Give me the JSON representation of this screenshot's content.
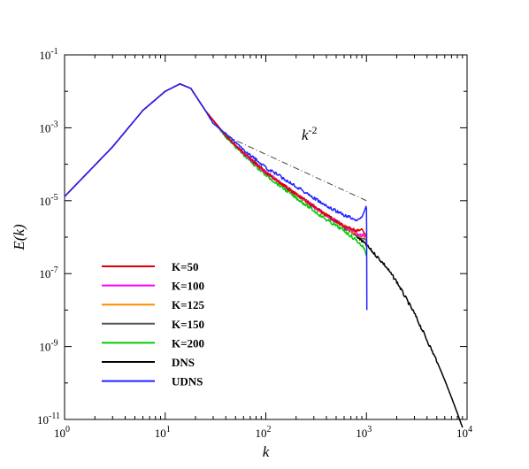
{
  "chart_data": {
    "type": "line",
    "xlabel": "k",
    "ylabel": "E(k)",
    "x_scale": "log",
    "y_scale": "log",
    "xlim": [
      1,
      10000
    ],
    "ylim": [
      1e-11,
      0.1
    ],
    "x_ticks": [
      {
        "value": 1,
        "base": "10",
        "exp": "0"
      },
      {
        "value": 10,
        "base": "10",
        "exp": "1"
      },
      {
        "value": 100,
        "base": "10",
        "exp": "2"
      },
      {
        "value": 1000,
        "base": "10",
        "exp": "3"
      },
      {
        "value": 10000,
        "base": "10",
        "exp": "4"
      }
    ],
    "y_ticks": [
      {
        "value": 1e-11,
        "base": "10",
        "exp": "-11"
      },
      {
        "value": 1e-09,
        "base": "10",
        "exp": "-9"
      },
      {
        "value": 1e-07,
        "base": "10",
        "exp": "-7"
      },
      {
        "value": 1e-05,
        "base": "10",
        "exp": "-5"
      },
      {
        "value": 0.001,
        "base": "10",
        "exp": "-3"
      },
      {
        "value": 0.1,
        "base": "10",
        "exp": "-1"
      }
    ],
    "grid": false,
    "legend_position": "bottom-left",
    "annotation": {
      "base": "k",
      "exp": "-2",
      "line": [
        [
          40,
          0.0006
        ],
        [
          1000,
          1e-05
        ]
      ]
    },
    "series": [
      {
        "name": "K=50",
        "color": "#dd0000",
        "x": [
          1,
          3,
          6,
          10,
          14,
          18,
          25,
          40,
          60,
          100,
          200,
          400,
          600,
          800,
          900,
          950,
          1000
        ],
        "y": [
          1.3e-05,
          0.0003,
          0.003,
          0.01,
          0.016,
          0.012,
          0.003,
          0.0006,
          0.0002,
          6e-05,
          1.5e-05,
          4e-06,
          2e-06,
          1.5e-06,
          1.7e-06,
          1.3e-06,
          1.1e-06
        ]
      },
      {
        "name": "K=100",
        "color": "#ff00ff",
        "x": [
          1,
          3,
          6,
          10,
          14,
          18,
          25,
          40,
          60,
          100,
          200,
          400,
          600,
          800,
          950,
          1000
        ],
        "y": [
          1.3e-05,
          0.0003,
          0.003,
          0.01,
          0.016,
          0.012,
          0.003,
          0.0006,
          0.0002,
          6e-05,
          1.5e-05,
          4e-06,
          2e-06,
          1.3e-06,
          1.1e-06,
          1e-06
        ]
      },
      {
        "name": "K=125",
        "color": "#ff8c00",
        "x": [
          1,
          3,
          6,
          10,
          14,
          18,
          25,
          40,
          60,
          100,
          200,
          400,
          600,
          800,
          950,
          1000
        ],
        "y": [
          1.3e-05,
          0.0003,
          0.003,
          0.01,
          0.016,
          0.012,
          0.003,
          0.0006,
          0.0002,
          6e-05,
          1.5e-05,
          4e-06,
          2e-06,
          1.2e-06,
          1e-06,
          9e-07
        ]
      },
      {
        "name": "K=150",
        "color": "#555555",
        "x": [
          1,
          3,
          6,
          10,
          14,
          18,
          25,
          40,
          60,
          100,
          200,
          400,
          600,
          800,
          950,
          1000
        ],
        "y": [
          1.3e-05,
          0.0003,
          0.003,
          0.01,
          0.016,
          0.012,
          0.003,
          0.0006,
          0.0002,
          6e-05,
          1.5e-05,
          4e-06,
          1.8e-06,
          1.1e-06,
          9e-07,
          8e-07
        ]
      },
      {
        "name": "K=200",
        "color": "#00cc00",
        "x": [
          1,
          3,
          6,
          10,
          14,
          18,
          25,
          40,
          60,
          100,
          200,
          400,
          600,
          800,
          950,
          1000
        ],
        "y": [
          1.3e-05,
          0.0003,
          0.003,
          0.01,
          0.016,
          0.012,
          0.003,
          0.00055,
          0.00018,
          5e-05,
          1.2e-05,
          3e-06,
          1.5e-06,
          8e-07,
          5e-07,
          3e-07
        ]
      },
      {
        "name": "DNS",
        "color": "#000000",
        "x": [
          1,
          3,
          6,
          10,
          14,
          18,
          25,
          40,
          60,
          100,
          200,
          400,
          700,
          1000,
          1500,
          2000,
          3000,
          4000,
          5000,
          6000,
          7000,
          8000,
          9000
        ],
        "y": [
          1.3e-05,
          0.0003,
          0.003,
          0.01,
          0.016,
          0.012,
          0.003,
          0.0006,
          0.0002,
          6e-05,
          1.5e-05,
          4e-06,
          1.5e-06,
          6e-07,
          1.8e-07,
          6e-08,
          8e-09,
          1.5e-09,
          4e-10,
          1.2e-10,
          4e-11,
          1.5e-11,
          6e-12
        ]
      },
      {
        "name": "UDNS",
        "color": "#2222ff",
        "x": [
          1,
          3,
          6,
          10,
          14,
          18,
          25,
          30,
          40,
          60,
          100,
          200,
          400,
          600,
          800,
          900,
          950,
          990,
          1000,
          1005,
          1010
        ],
        "y": [
          1.3e-05,
          0.0003,
          0.003,
          0.01,
          0.016,
          0.012,
          0.003,
          0.0013,
          0.0007,
          0.00025,
          8e-05,
          2.5e-05,
          7e-06,
          4e-06,
          3e-06,
          3.5e-06,
          5e-06,
          7e-06,
          6e-06,
          1e-06,
          1e-08
        ]
      }
    ]
  }
}
